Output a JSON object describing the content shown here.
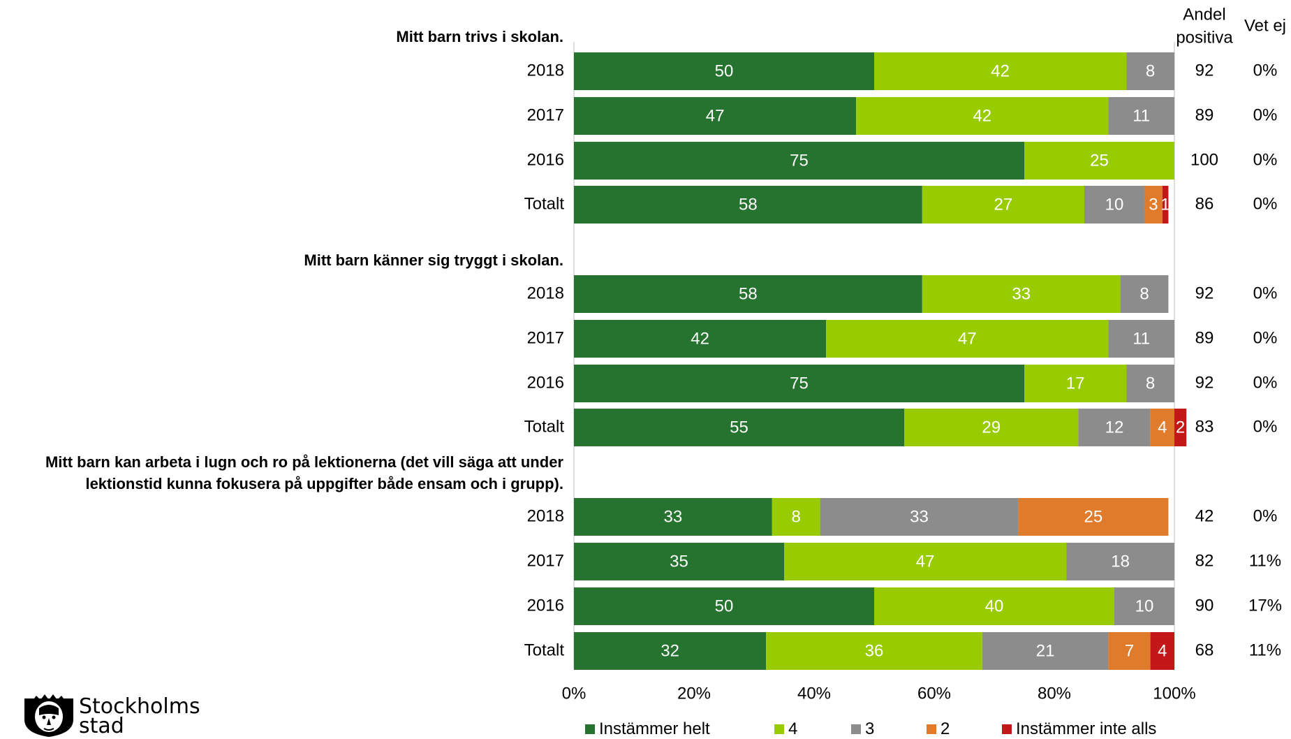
{
  "chart_data": {
    "type": "bar",
    "orientation": "horizontal",
    "stacked": true,
    "column_headers": {
      "andel_line1": "Andel",
      "andel_line2": "positiva",
      "vet_ej": "Vet ej"
    },
    "x_ticks": [
      "0%",
      "20%",
      "40%",
      "60%",
      "80%",
      "100%"
    ],
    "xlim": [
      0,
      100
    ],
    "legend_position": "bottom",
    "series": [
      {
        "name": "Instämmer helt",
        "color": "#25732E"
      },
      {
        "name": "4",
        "color": "#99CC00"
      },
      {
        "name": "3",
        "color": "#8C8C8C"
      },
      {
        "name": "2",
        "color": "#E07B2C"
      },
      {
        "name": "Instämmer inte alls",
        "color": "#C21818"
      }
    ],
    "groups": [
      {
        "title": [
          "Mitt barn trivs i skolan."
        ],
        "rows": [
          {
            "label": "2018",
            "values": [
              50,
              42,
              8,
              0,
              0
            ],
            "labels": [
              "50",
              "42",
              "8",
              "",
              ""
            ],
            "andel": "92",
            "vet_ej": "0%"
          },
          {
            "label": "2017",
            "values": [
              47,
              42,
              11,
              0,
              0
            ],
            "labels": [
              "47",
              "42",
              "11",
              "",
              ""
            ],
            "andel": "89",
            "vet_ej": "0%"
          },
          {
            "label": "2016",
            "values": [
              75,
              25,
              0,
              0,
              0
            ],
            "labels": [
              "75",
              "25",
              "",
              "",
              ""
            ],
            "andel": "100",
            "vet_ej": "0%"
          },
          {
            "label": "Totalt",
            "values": [
              58,
              27,
              10,
              3,
              1
            ],
            "labels": [
              "58",
              "27",
              "10",
              "3",
              "1"
            ],
            "andel": "86",
            "vet_ej": "0%"
          }
        ]
      },
      {
        "title": [
          "Mitt barn känner sig tryggt i skolan."
        ],
        "rows": [
          {
            "label": "2018",
            "values": [
              58,
              33,
              8,
              0,
              0
            ],
            "labels": [
              "58",
              "33",
              "8",
              "",
              ""
            ],
            "andel": "92",
            "vet_ej": "0%"
          },
          {
            "label": "2017",
            "values": [
              42,
              47,
              11,
              0,
              0
            ],
            "labels": [
              "42",
              "47",
              "11",
              "",
              ""
            ],
            "andel": "89",
            "vet_ej": "0%"
          },
          {
            "label": "2016",
            "values": [
              75,
              17,
              8,
              0,
              0
            ],
            "labels": [
              "75",
              "17",
              "8",
              "",
              ""
            ],
            "andel": "92",
            "vet_ej": "0%"
          },
          {
            "label": "Totalt",
            "values": [
              55,
              29,
              12,
              4,
              2
            ],
            "labels": [
              "55",
              "29",
              "12",
              "4",
              "2"
            ],
            "andel": "83",
            "vet_ej": "0%"
          }
        ]
      },
      {
        "title": [
          "Mitt barn kan arbeta i lugn och ro på lektionerna (det vill säga att under",
          "lektionstid kunna fokusera på uppgifter både ensam och i grupp)."
        ],
        "rows": [
          {
            "label": "2018",
            "values": [
              33,
              8,
              33,
              25,
              0
            ],
            "labels": [
              "33",
              "8",
              "33",
              "25",
              ""
            ],
            "andel": "42",
            "vet_ej": "0%"
          },
          {
            "label": "2017",
            "values": [
              35,
              47,
              18,
              0,
              0
            ],
            "labels": [
              "35",
              "47",
              "18",
              "",
              ""
            ],
            "andel": "82",
            "vet_ej": "11%"
          },
          {
            "label": "2016",
            "values": [
              50,
              40,
              10,
              0,
              0
            ],
            "labels": [
              "50",
              "40",
              "10",
              "",
              ""
            ],
            "andel": "90",
            "vet_ej": "17%"
          },
          {
            "label": "Totalt",
            "values": [
              32,
              36,
              21,
              7,
              4
            ],
            "labels": [
              "32",
              "36",
              "21",
              "7",
              "4"
            ],
            "andel": "68",
            "vet_ej": "11%"
          }
        ]
      }
    ]
  },
  "logo": {
    "line1": "Stockholms",
    "line2": "stad"
  }
}
